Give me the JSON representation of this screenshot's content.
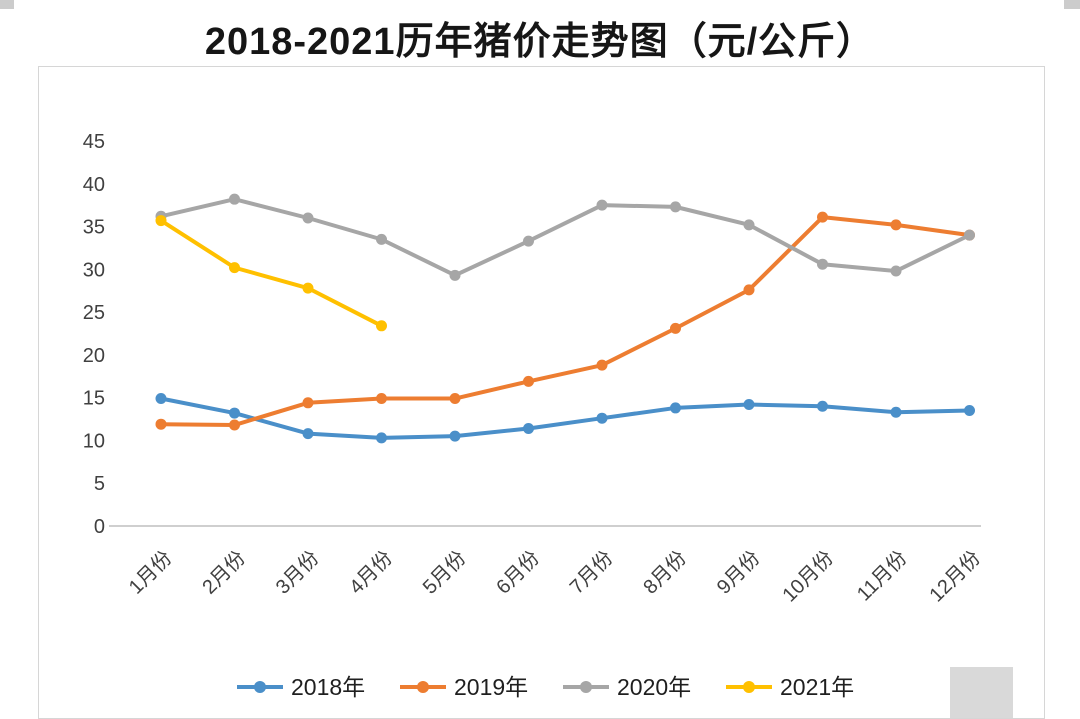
{
  "chart_data": {
    "type": "line",
    "title": "2018-2021历年猪价走势图（元/公斤）",
    "categories": [
      "1月份",
      "2月份",
      "3月份",
      "4月份",
      "5月份",
      "6月份",
      "7月份",
      "8月份",
      "9月份",
      "10月份",
      "11月份",
      "12月份"
    ],
    "series": [
      {
        "name": "2018年",
        "color": "#4a8fc9",
        "values": [
          14.9,
          13.2,
          10.8,
          10.3,
          10.5,
          11.4,
          12.6,
          13.8,
          14.2,
          14.0,
          13.3,
          13.5
        ]
      },
      {
        "name": "2019年",
        "color": "#ed7d31",
        "values": [
          11.9,
          11.8,
          14.4,
          14.9,
          14.9,
          16.9,
          18.8,
          23.1,
          27.6,
          36.1,
          35.2,
          34.0
        ]
      },
      {
        "name": "2020年",
        "color": "#a6a6a6",
        "values": [
          36.2,
          38.2,
          36.0,
          33.5,
          29.3,
          33.3,
          37.5,
          37.3,
          35.2,
          30.6,
          29.8,
          34.0
        ]
      },
      {
        "name": "2021年",
        "color": "#ffc000",
        "values": [
          35.7,
          30.2,
          27.8,
          23.4
        ]
      }
    ],
    "ylim": [
      0,
      45
    ],
    "ytick_step": 5,
    "xlabel": "",
    "ylabel": "",
    "grid": false,
    "legend_position": "bottom",
    "axis_color": "#bfbfbf"
  }
}
